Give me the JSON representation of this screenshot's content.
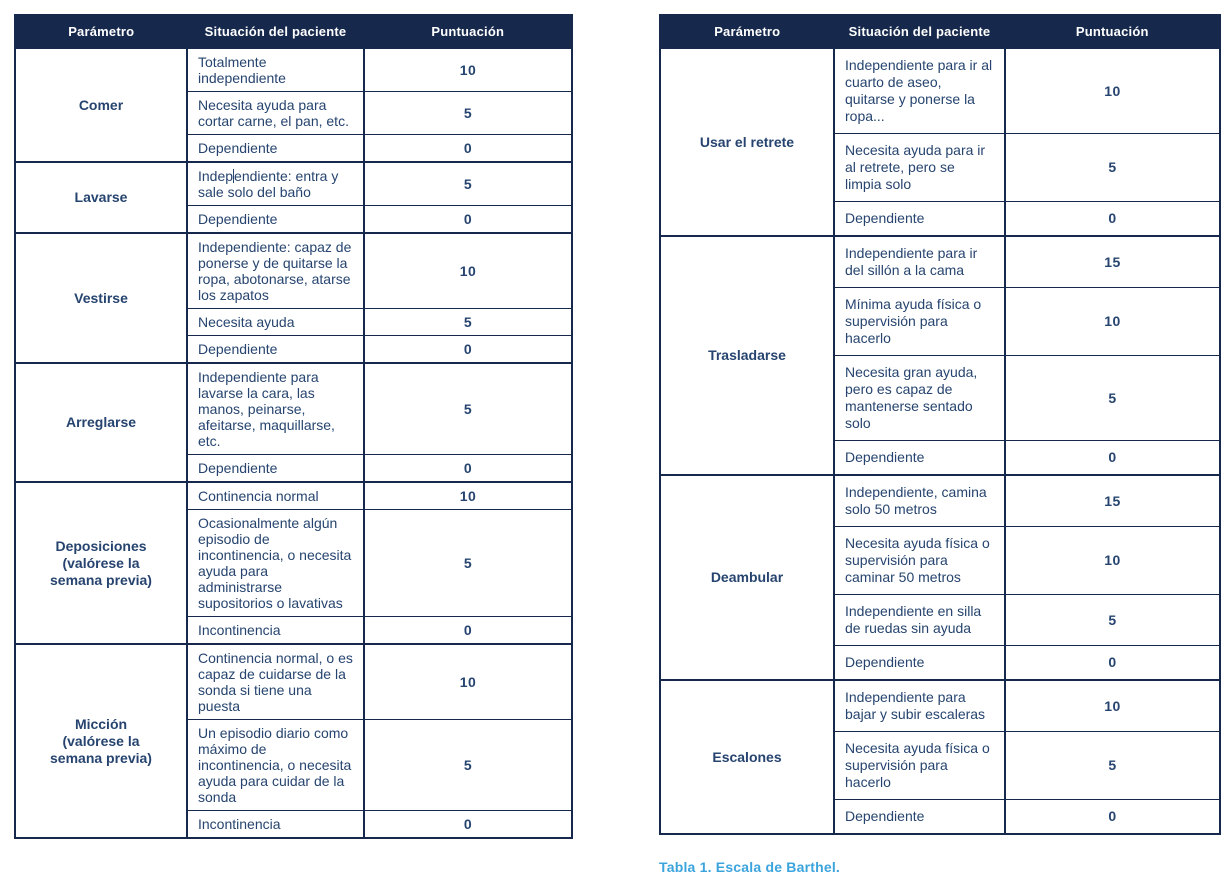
{
  "colors": {
    "header_bg": "#16294d",
    "body_text": "#26446f",
    "border": "#16294d",
    "caption_blue": "#3ca4dd",
    "header_text": "#ffffff"
  },
  "columns": [
    "Parámetro",
    "Situación del paciente",
    "Puntuación"
  ],
  "caption": {
    "text": "Tabla 1. Escala de Barthel."
  },
  "left_table": {
    "groups": [
      {
        "parameter": "Comer",
        "rows": [
          {
            "situation": "Totalmente independiente",
            "score": "10"
          },
          {
            "situation": "Necesita ayuda para cortar carne, el pan, etc.",
            "score": "5"
          },
          {
            "situation": "Dependiente",
            "score": "0"
          }
        ]
      },
      {
        "parameter": "Lavarse",
        "rows": [
          {
            "situation": "Independiente: entra y sale solo del baño",
            "score": "5",
            "caret_at": 5
          },
          {
            "situation": "Dependiente",
            "score": "0"
          }
        ]
      },
      {
        "parameter": "Vestirse",
        "rows": [
          {
            "situation": "Independiente: capaz de ponerse y de quitarse la ropa, abotonarse, atarse los zapatos",
            "score": "10"
          },
          {
            "situation": "Necesita ayuda",
            "score": "5"
          },
          {
            "situation": "Dependiente",
            "score": "0"
          }
        ]
      },
      {
        "parameter": "Arreglarse",
        "rows": [
          {
            "situation": "Independiente para lavarse la cara, las manos, peinarse, afeitarse, maquillarse, etc.",
            "score": "5"
          },
          {
            "situation": "Dependiente",
            "score": "0"
          }
        ]
      },
      {
        "parameter": "Deposiciones\n(valórese la\nsemana previa)",
        "rows": [
          {
            "situation": "Continencia normal",
            "score": "10"
          },
          {
            "situation": "Ocasionalmente algún episodio de incontinencia, o necesita ayuda para administrarse supositorios o lavativas",
            "score": "5"
          },
          {
            "situation": "Incontinencia",
            "score": "0"
          }
        ]
      },
      {
        "parameter": "Micción\n(valórese la\nsemana previa)",
        "rows": [
          {
            "situation": "Continencia normal, o es capaz de cuidarse de la sonda si tiene una puesta",
            "score": "10"
          },
          {
            "situation": "Un episodio diario como máximo de incontinencia, o necesita ayuda para cuidar de la sonda",
            "score": "5"
          },
          {
            "situation": "Incontinencia",
            "score": "0"
          }
        ]
      }
    ]
  },
  "right_table": {
    "groups": [
      {
        "parameter": "Usar el retrete",
        "rows": [
          {
            "situation": "Independiente para ir al cuarto de aseo, quitarse y ponerse la ropa...",
            "score": "10"
          },
          {
            "situation": "Necesita ayuda para ir al retrete, pero se limpia solo",
            "score": "5"
          },
          {
            "situation": "Dependiente",
            "score": "0"
          }
        ]
      },
      {
        "parameter": "Trasladarse",
        "rows": [
          {
            "situation": "Independiente para ir del sillón a la cama",
            "score": "15"
          },
          {
            "situation": "Mínima ayuda física o supervisión para hacerlo",
            "score": "10"
          },
          {
            "situation": "Necesita gran ayuda, pero es capaz de mantenerse sentado solo",
            "score": "5"
          },
          {
            "situation": "Dependiente",
            "score": "0"
          }
        ]
      },
      {
        "parameter": "Deambular",
        "rows": [
          {
            "situation": "Independiente, camina solo 50 metros",
            "score": "15"
          },
          {
            "situation": "Necesita ayuda física o supervisión para caminar 50 metros",
            "score": "10"
          },
          {
            "situation": "Independiente en silla de ruedas sin ayuda",
            "score": "5"
          },
          {
            "situation": "Dependiente",
            "score": "0"
          }
        ]
      },
      {
        "parameter": "Escalones",
        "rows": [
          {
            "situation": "Independiente para bajar y subir escaleras",
            "score": "10"
          },
          {
            "situation": "Necesita ayuda física o supervisión para hacerlo",
            "score": "5"
          },
          {
            "situation": "Dependiente",
            "score": "0"
          }
        ]
      }
    ]
  }
}
